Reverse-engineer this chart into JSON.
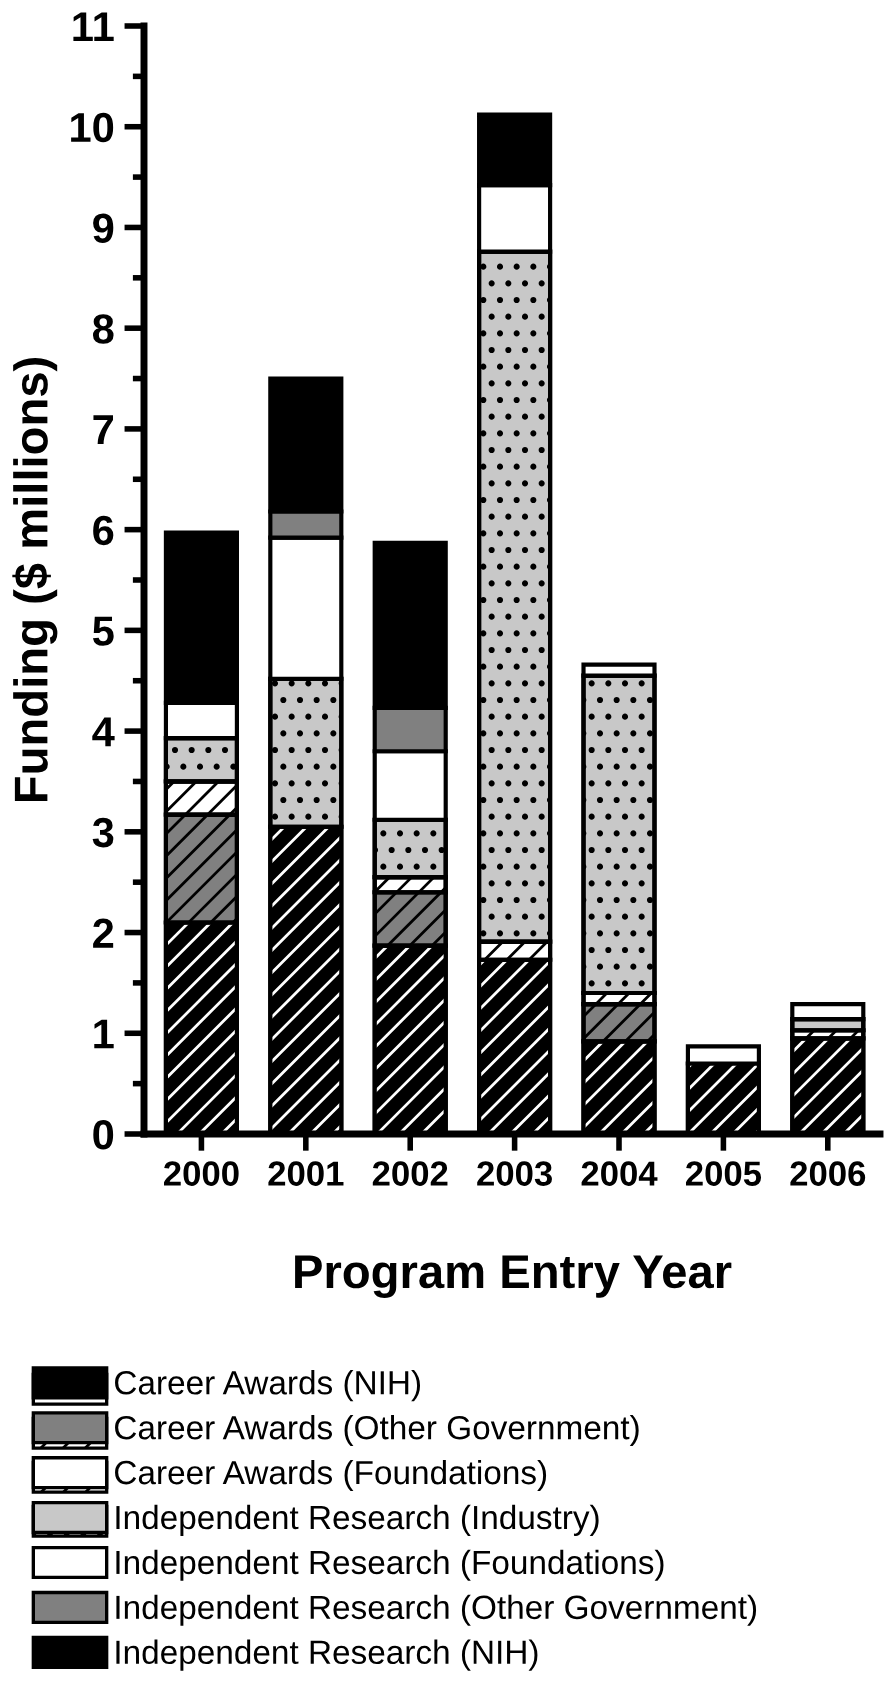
{
  "chart_data": {
    "type": "bar",
    "stacked": true,
    "xlabel": "Program Entry Year",
    "ylabel": "Funding ($ millions)",
    "categories": [
      "2000",
      "2001",
      "2002",
      "2003",
      "2004",
      "2005",
      "2006"
    ],
    "ylim": [
      0,
      11
    ],
    "yticks": [
      0,
      1,
      2,
      3,
      4,
      5,
      6,
      7,
      8,
      9,
      10,
      11
    ],
    "grid": false,
    "legend": "bottom",
    "series": [
      {
        "name": "Career Awards (NIH)",
        "color": "#000000",
        "values": [
          2.1,
          3.05,
          1.87,
          1.73,
          0.92,
          0.7,
          0.95
        ]
      },
      {
        "name": "Career Awards (Other Government)",
        "color": "#808080",
        "values": [
          1.07,
          null,
          0.53,
          null,
          0.37,
          null,
          null
        ]
      },
      {
        "name": "Career Awards (Foundations)",
        "color": "#ffffff",
        "values": [
          0.33,
          null,
          0.15,
          0.18,
          0.11,
          null,
          0.08
        ]
      },
      {
        "name": "Independent Research (Industry)",
        "color": "#c8c8c8",
        "values": [
          0.43,
          1.47,
          0.57,
          6.85,
          3.15,
          null,
          0.11
        ]
      },
      {
        "name": "Independent Research (Foundations)",
        "color": "#ffffff",
        "values": [
          0.35,
          1.4,
          0.68,
          0.66,
          0.11,
          0.17,
          0.15
        ]
      },
      {
        "name": "Independent Research (Other Government)",
        "color": "#808080",
        "values": [
          null,
          0.26,
          0.43,
          null,
          null,
          null,
          null
        ]
      },
      {
        "name": "Independent Research (NIH)",
        "color": "#000000",
        "values": [
          1.69,
          1.32,
          1.64,
          0.7,
          null,
          null,
          null
        ]
      }
    ]
  }
}
